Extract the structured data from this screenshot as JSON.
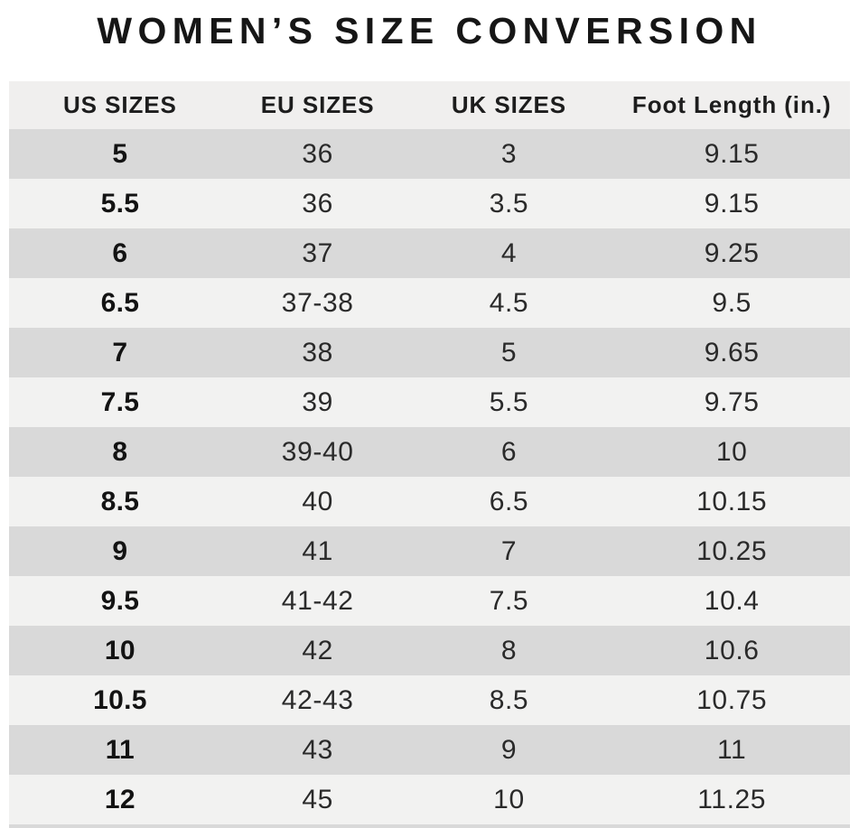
{
  "title": "WOMEN’S SIZE CONVERSION",
  "colors": {
    "page_background": "#ffffff",
    "header_band": "#f0efee",
    "row_dark": "#d9d9d9",
    "row_light": "#f2f2f1",
    "text": "#1d1d1d"
  },
  "chart_data": {
    "type": "table",
    "title": "WOMEN’S SIZE CONVERSION",
    "columns": [
      "US SIZES",
      "EU SIZES",
      "UK SIZES",
      "Foot Length (in.)"
    ],
    "rows": [
      [
        "5",
        "36",
        "3",
        "9.15"
      ],
      [
        "5.5",
        "36",
        "3.5",
        "9.15"
      ],
      [
        "6",
        "37",
        "4",
        "9.25"
      ],
      [
        "6.5",
        "37-38",
        "4.5",
        "9.5"
      ],
      [
        "7",
        "38",
        "5",
        "9.65"
      ],
      [
        "7.5",
        "39",
        "5.5",
        "9.75"
      ],
      [
        "8",
        "39-40",
        "6",
        "10"
      ],
      [
        "8.5",
        "40",
        "6.5",
        "10.15"
      ],
      [
        "9",
        "41",
        "7",
        "10.25"
      ],
      [
        "9.5",
        "41-42",
        "7.5",
        "10.4"
      ],
      [
        "10",
        "42",
        "8",
        "10.6"
      ],
      [
        "10.5",
        "42-43",
        "8.5",
        "10.75"
      ],
      [
        "11",
        "43",
        "9",
        "11"
      ],
      [
        "12",
        "45",
        "10",
        "11.25"
      ]
    ],
    "layout_hints": {
      "first_column_bold": true,
      "alternating_row_shading": "first data row dark",
      "all_cells_centered": true
    }
  }
}
